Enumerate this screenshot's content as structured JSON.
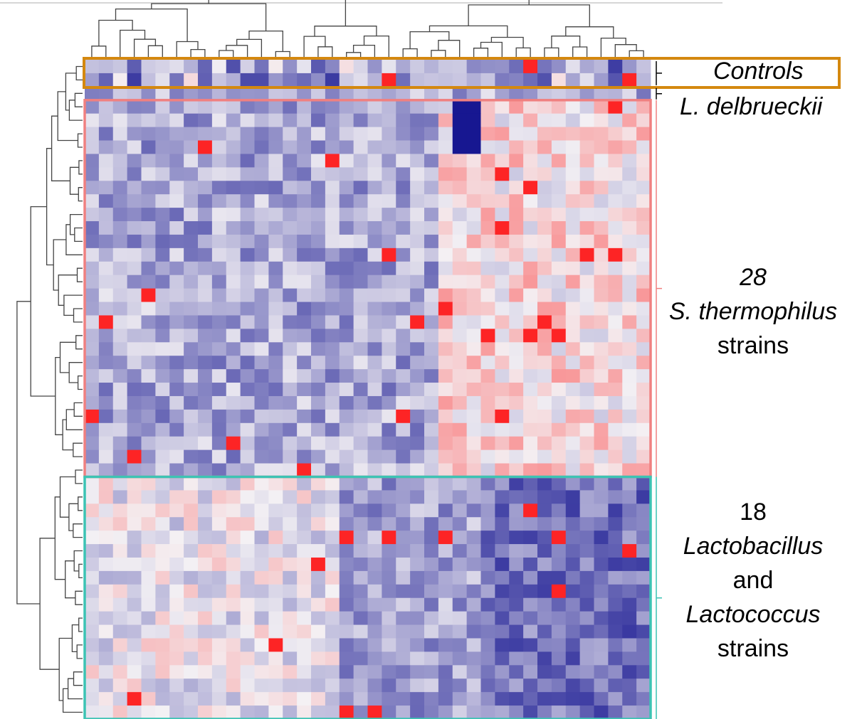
{
  "chart_data": {
    "type": "heatmap",
    "title": "",
    "xlabel": "",
    "ylabel": "",
    "colormap": {
      "low": "#0b0b8c",
      "mid": "#f4f1f4",
      "high": "#ff0000"
    },
    "n_columns": 40,
    "groups": [
      {
        "label": "Controls",
        "rows": 2,
        "border_color": "#d4880f"
      },
      {
        "label": "L. delbrueckii",
        "rows": 1,
        "border_color": ""
      },
      {
        "label_number": "28",
        "label_species": "S. thermophilus",
        "label_suffix": "strains",
        "rows": 28,
        "border_color": "#f08080"
      },
      {
        "label_number": "18",
        "label_genus1": "Lactobacillus",
        "label_and": "and",
        "label_genus2": "Lactococcus",
        "label_suffix": "strains",
        "rows": 18,
        "border_color": "#3cc3b4"
      }
    ]
  },
  "labels": {
    "controls": "Controls",
    "ldelbrueckii": "L. delbrueckii",
    "st_count": "28",
    "st_species": "S. thermophilus",
    "st_suffix": "strains",
    "lb_count": "18",
    "lb_genus1": "Lactobacillus",
    "lb_and": "and",
    "lb_genus2": "Lactococcus",
    "lb_suffix": "strains"
  }
}
